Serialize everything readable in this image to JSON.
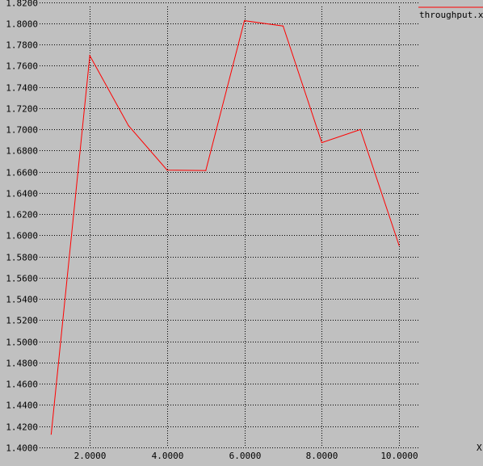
{
  "chart_data": {
    "type": "line",
    "title": "",
    "xlabel": "X",
    "ylabel": "",
    "xlim": [
      0.7,
      10.5
    ],
    "ylim": [
      1.4,
      1.822
    ],
    "grid": true,
    "legend_position": "top-right",
    "x_ticks": [
      {
        "value": 2,
        "label": "2.0000"
      },
      {
        "value": 4,
        "label": "4.0000"
      },
      {
        "value": 6,
        "label": "6.0000"
      },
      {
        "value": 8,
        "label": "8.0000"
      },
      {
        "value": 10,
        "label": "10.0000"
      }
    ],
    "y_ticks": [
      {
        "value": 1.4,
        "label": "1.4000"
      },
      {
        "value": 1.42,
        "label": "1.4200"
      },
      {
        "value": 1.44,
        "label": "1.4400"
      },
      {
        "value": 1.46,
        "label": "1.4600"
      },
      {
        "value": 1.48,
        "label": "1.4800"
      },
      {
        "value": 1.5,
        "label": "1.5000"
      },
      {
        "value": 1.52,
        "label": "1.5200"
      },
      {
        "value": 1.54,
        "label": "1.5400"
      },
      {
        "value": 1.56,
        "label": "1.5600"
      },
      {
        "value": 1.58,
        "label": "1.5800"
      },
      {
        "value": 1.6,
        "label": "1.6000"
      },
      {
        "value": 1.62,
        "label": "1.6200"
      },
      {
        "value": 1.64,
        "label": "1.6400"
      },
      {
        "value": 1.66,
        "label": "1.6600"
      },
      {
        "value": 1.68,
        "label": "1.6800"
      },
      {
        "value": 1.7,
        "label": "1.7000"
      },
      {
        "value": 1.72,
        "label": "1.7200"
      },
      {
        "value": 1.74,
        "label": "1.7400"
      },
      {
        "value": 1.76,
        "label": "1.7600"
      },
      {
        "value": 1.78,
        "label": "1.7800"
      },
      {
        "value": 1.8,
        "label": "1.8000"
      },
      {
        "value": 1.82,
        "label": "1.8200"
      }
    ],
    "series": [
      {
        "name": "throughput.xg",
        "color": "#ff0000",
        "x": [
          1,
          2,
          3,
          4,
          5,
          6,
          7,
          8,
          9,
          10
        ],
        "y": [
          1.4125,
          1.7695,
          1.7035,
          1.6616,
          1.6612,
          1.8025,
          1.7975,
          1.6875,
          1.6998,
          1.5905
        ]
      }
    ]
  },
  "colors": {
    "background": "#c0c0c0",
    "grid": "#000000",
    "series": "#ff0000"
  }
}
